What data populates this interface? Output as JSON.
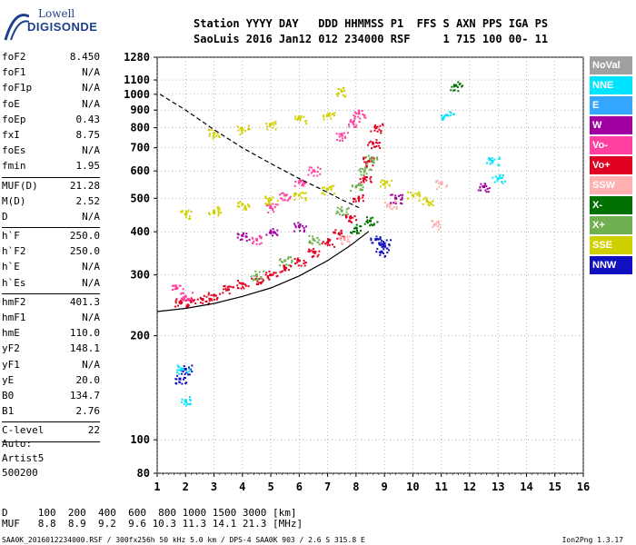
{
  "logo": {
    "line1": "Lowell",
    "line2": "DIGISONDE"
  },
  "header": {
    "row1": "Station YYYY DAY   DDD HHMMSS P1  FFS S AXN PPS IGA PS",
    "row2": "SaoLuis 2016 Jan12 012 234000 RSF     1 715 100 00- 11"
  },
  "params": [
    {
      "label": "foF2",
      "value": "8.450"
    },
    {
      "label": "foF1",
      "value": "N/A"
    },
    {
      "label": "foF1p",
      "value": "N/A"
    },
    {
      "label": "foE",
      "value": "N/A"
    },
    {
      "label": "foEp",
      "value": "0.43"
    },
    {
      "label": "fxI",
      "value": "8.75"
    },
    {
      "label": "foEs",
      "value": "N/A"
    },
    {
      "label": "fmin",
      "value": "1.95"
    },
    {
      "sep": true
    },
    {
      "label": "MUF(D)",
      "value": "21.28"
    },
    {
      "label": "M(D)",
      "value": "2.52"
    },
    {
      "label": "D",
      "value": "N/A"
    },
    {
      "sep": true
    },
    {
      "label": "h`F",
      "value": "250.0"
    },
    {
      "label": "h`F2",
      "value": "250.0"
    },
    {
      "label": "h`E",
      "value": "N/A"
    },
    {
      "label": "h`Es",
      "value": "N/A"
    },
    {
      "sep": true
    },
    {
      "label": "hmF2",
      "value": "401.3"
    },
    {
      "label": "hmF1",
      "value": "N/A"
    },
    {
      "label": "hmE",
      "value": "110.0"
    },
    {
      "label": "yF2",
      "value": "148.1"
    },
    {
      "label": "yF1",
      "value": "N/A"
    },
    {
      "label": "yE",
      "value": "20.0"
    },
    {
      "label": "B0",
      "value": "134.7"
    },
    {
      "label": "B1",
      "value": "2.76"
    },
    {
      "sep": true
    },
    {
      "label": "C-level",
      "value": "22"
    },
    {
      "sep": true
    }
  ],
  "auto": {
    "line1": "Auto:",
    "line2": "Artist5",
    "line3": "500200"
  },
  "footer": {
    "d_row": "D     100  200  400  600  800 1000 1500 3000 [km]",
    "muf_row": "MUF   8.8  8.9  9.2  9.6 10.3 11.3 14.1 21.3 [MHz]",
    "info": "SAA0K_2016012234000.RSF / 300fx256h 50 kHz 5.0 km / DPS-4 SAA0K 903 / 2.6 S 315.8 E",
    "version": "Ion2Png 1.3.17"
  },
  "legend": [
    {
      "name": "NoVal",
      "color": "#a0a0a0"
    },
    {
      "name": "NNE",
      "color": "#00e5ff"
    },
    {
      "name": "E",
      "color": "#33a6ff"
    },
    {
      "name": "W",
      "color": "#a000a0"
    },
    {
      "name": "Vo-",
      "color": "#ff40a0"
    },
    {
      "name": "Vo+",
      "color": "#e00020"
    },
    {
      "name": "SSW",
      "color": "#ffb0b0"
    },
    {
      "name": "X-",
      "color": "#007000"
    },
    {
      "name": "X+",
      "color": "#70b050"
    },
    {
      "name": "SSE",
      "color": "#d0d000"
    },
    {
      "name": "NNW",
      "color": "#1010c0"
    }
  ],
  "chart_data": {
    "type": "scatter",
    "title": "",
    "xlabel": "",
    "ylabel": "",
    "xlim": [
      1,
      16
    ],
    "ylim": [
      80,
      1280
    ],
    "y_scale": "log",
    "x_ticks": [
      1,
      2,
      3,
      4,
      5,
      6,
      7,
      8,
      9,
      10,
      11,
      12,
      13,
      14,
      15,
      16
    ],
    "y_ticks": [
      80,
      100,
      200,
      300,
      400,
      500,
      600,
      700,
      800,
      900,
      1000,
      1100,
      1280
    ],
    "series": [
      {
        "name": "Vo+",
        "color": "#e00020",
        "points": [
          [
            1.8,
            250
          ],
          [
            2.2,
            252
          ],
          [
            2.6,
            255
          ],
          [
            3.0,
            262
          ],
          [
            3.5,
            272
          ],
          [
            4.0,
            283
          ],
          [
            4.5,
            292
          ],
          [
            5.0,
            300
          ],
          [
            5.5,
            312
          ],
          [
            6.0,
            330
          ],
          [
            6.5,
            350
          ],
          [
            7.0,
            372
          ],
          [
            7.4,
            395
          ],
          [
            7.8,
            440
          ],
          [
            8.1,
            500
          ],
          [
            8.3,
            570
          ],
          [
            8.45,
            640
          ],
          [
            8.6,
            720
          ],
          [
            8.7,
            800
          ]
        ]
      },
      {
        "name": "Vo-",
        "color": "#ff40a0",
        "points": [
          [
            1.7,
            275
          ],
          [
            2.0,
            260
          ],
          [
            4.5,
            380
          ],
          [
            5.0,
            470
          ],
          [
            5.5,
            510
          ],
          [
            6.0,
            555
          ],
          [
            6.5,
            600
          ],
          [
            7.5,
            760
          ],
          [
            7.9,
            830
          ],
          [
            8.1,
            880
          ]
        ]
      },
      {
        "name": "X+",
        "color": "#70b050",
        "points": [
          [
            4.5,
            300
          ],
          [
            5.5,
            330
          ],
          [
            6.5,
            380
          ],
          [
            7.5,
            460
          ],
          [
            8.0,
            540
          ],
          [
            8.3,
            600
          ],
          [
            8.5,
            650
          ]
        ]
      },
      {
        "name": "SSE",
        "color": "#d0d000",
        "points": [
          [
            2.0,
            450
          ],
          [
            3.0,
            460
          ],
          [
            4.0,
            480
          ],
          [
            5.0,
            495
          ],
          [
            6.0,
            510
          ],
          [
            7.0,
            530
          ],
          [
            3.0,
            770
          ],
          [
            4.0,
            790
          ],
          [
            5.0,
            820
          ],
          [
            6.0,
            850
          ],
          [
            7.0,
            870
          ],
          [
            7.5,
            1020
          ],
          [
            9.0,
            550
          ],
          [
            10.0,
            510
          ],
          [
            10.5,
            490
          ]
        ]
      },
      {
        "name": "NNW",
        "color": "#1010c0",
        "points": [
          [
            8.7,
            380
          ],
          [
            9.0,
            370
          ],
          [
            8.9,
            350
          ],
          [
            1.8,
            150
          ],
          [
            2.0,
            160
          ]
        ]
      },
      {
        "name": "SSW",
        "color": "#ffb0b0",
        "points": [
          [
            7.6,
            380
          ],
          [
            9.2,
            480
          ],
          [
            10.8,
            420
          ],
          [
            11.0,
            550
          ]
        ]
      },
      {
        "name": "NNE",
        "color": "#00e5ff",
        "points": [
          [
            2.0,
            130
          ],
          [
            1.9,
            160
          ],
          [
            11.2,
            870
          ],
          [
            12.8,
            640
          ],
          [
            13.0,
            570
          ]
        ]
      },
      {
        "name": "W",
        "color": "#a000a0",
        "points": [
          [
            4.0,
            390
          ],
          [
            5.0,
            400
          ],
          [
            6.0,
            415
          ],
          [
            9.4,
            500
          ],
          [
            12.5,
            540
          ]
        ]
      },
      {
        "name": "X-",
        "color": "#007000",
        "points": [
          [
            8.5,
            430
          ],
          [
            8.0,
            410
          ],
          [
            11.5,
            1060
          ]
        ]
      }
    ],
    "curves": [
      {
        "name": "profile",
        "style": "solid",
        "points": [
          [
            1,
            235
          ],
          [
            2,
            240
          ],
          [
            3,
            248
          ],
          [
            4,
            260
          ],
          [
            5,
            275
          ],
          [
            6,
            298
          ],
          [
            7,
            330
          ],
          [
            7.8,
            365
          ],
          [
            8.45,
            401
          ]
        ]
      },
      {
        "name": "x-trace",
        "style": "dashed",
        "points": [
          [
            1.1,
            1000
          ],
          [
            2,
            900
          ],
          [
            3,
            790
          ],
          [
            4,
            700
          ],
          [
            5,
            630
          ],
          [
            6,
            570
          ],
          [
            7,
            520
          ],
          [
            7.5,
            495
          ],
          [
            8.1,
            470
          ]
        ]
      }
    ]
  }
}
